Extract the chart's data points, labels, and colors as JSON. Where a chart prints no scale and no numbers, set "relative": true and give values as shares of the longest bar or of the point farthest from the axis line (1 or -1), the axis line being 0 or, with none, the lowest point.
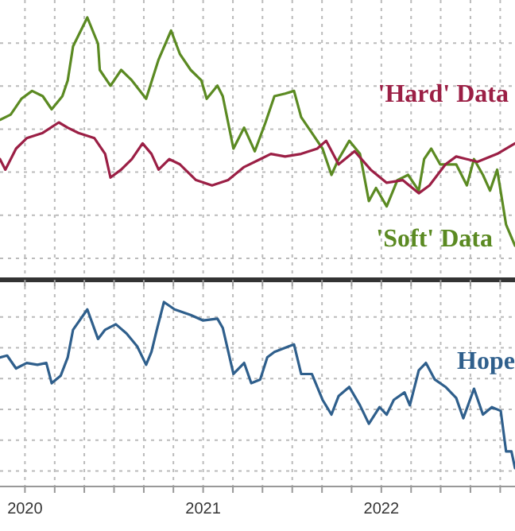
{
  "chart_data": [
    {
      "type": "line",
      "relative": true,
      "grid": true,
      "tick_labels": false,
      "xlim": [
        2020.36,
        2023.25
      ],
      "xticks": [
        {
          "value": 2020.5,
          "label": null
        },
        {
          "value": 2020.667,
          "label": null
        },
        {
          "value": 2020.833,
          "label": null
        },
        {
          "value": 2021,
          "label": null
        },
        {
          "value": 2021.167,
          "label": null
        },
        {
          "value": 2021.333,
          "label": null
        },
        {
          "value": 2021.5,
          "label": null
        },
        {
          "value": 2021.667,
          "label": null
        },
        {
          "value": 2021.833,
          "label": null
        },
        {
          "value": 2022,
          "label": null
        },
        {
          "value": 2022.167,
          "label": null
        },
        {
          "value": 2022.333,
          "label": null
        },
        {
          "value": 2022.5,
          "label": null
        },
        {
          "value": 2022.667,
          "label": null
        },
        {
          "value": 2022.833,
          "label": null
        },
        {
          "value": 2023,
          "label": null
        },
        {
          "value": 2023.167,
          "label": null
        }
      ],
      "series": [
        {
          "name": "'Soft' Data",
          "color": "#5b8a22",
          "x": [
            2020.36,
            2020.42,
            2020.48,
            2020.54,
            2020.6,
            2020.65,
            2020.71,
            2020.74,
            2020.77,
            2020.85,
            2020.91,
            2020.92,
            2020.98,
            2021.04,
            2021.1,
            2021.18,
            2021.25,
            2021.32,
            2021.37,
            2021.43,
            2021.49,
            2021.52,
            2021.58,
            2021.61,
            2021.67,
            2021.73,
            2021.79,
            2021.85,
            2021.9,
            2021.96,
            2022.01,
            2022.05,
            2022.11,
            2022.17,
            2022.22,
            2022.26,
            2022.32,
            2022.38,
            2022.43,
            2022.47,
            2022.53,
            2022.59,
            2022.65,
            2022.71,
            2022.74,
            2022.78,
            2022.83,
            2022.92,
            2022.98,
            2023.02,
            2023.07,
            2023.11,
            2023.15,
            2023.2,
            2023.25
          ],
          "values": [
            0.61,
            0.63,
            0.69,
            0.72,
            0.7,
            0.65,
            0.7,
            0.76,
            0.89,
            1,
            0.9,
            0.8,
            0.74,
            0.8,
            0.76,
            0.69,
            0.84,
            0.95,
            0.86,
            0.8,
            0.76,
            0.69,
            0.74,
            0.7,
            0.5,
            0.58,
            0.49,
            0.6,
            0.7,
            0.71,
            0.72,
            0.62,
            0.56,
            0.5,
            0.4,
            0.46,
            0.53,
            0.48,
            0.3,
            0.35,
            0.28,
            0.38,
            0.4,
            0.34,
            0.46,
            0.5,
            0.44,
            0.44,
            0.36,
            0.46,
            0.4,
            0.34,
            0.42,
            0.21,
            0.13
          ]
        },
        {
          "name": "'Hard' Data",
          "color": "#9b1f45",
          "x": [
            2020.36,
            2020.39,
            2020.45,
            2020.51,
            2020.6,
            2020.69,
            2020.74,
            2020.8,
            2020.89,
            2020.95,
            2020.98,
            2021.04,
            2021.1,
            2021.16,
            2021.21,
            2021.25,
            2021.31,
            2021.37,
            2021.46,
            2021.55,
            2021.64,
            2021.73,
            2021.82,
            2021.88,
            2021.96,
            2022.05,
            2022.14,
            2022.19,
            2022.26,
            2022.35,
            2022.44,
            2022.53,
            2022.62,
            2022.71,
            2022.77,
            2022.86,
            2022.92,
            2022.98,
            2023.04,
            2023.15,
            2023.25
          ],
          "values": [
            0.46,
            0.42,
            0.5,
            0.54,
            0.56,
            0.6,
            0.58,
            0.56,
            0.54,
            0.48,
            0.39,
            0.42,
            0.46,
            0.52,
            0.48,
            0.42,
            0.46,
            0.44,
            0.38,
            0.36,
            0.38,
            0.43,
            0.46,
            0.48,
            0.47,
            0.48,
            0.5,
            0.53,
            0.44,
            0.49,
            0.42,
            0.37,
            0.38,
            0.33,
            0.36,
            0.44,
            0.47,
            0.46,
            0.45,
            0.48,
            0.52
          ]
        }
      ]
    },
    {
      "type": "line",
      "relative": true,
      "grid": true,
      "tick_labels": "x",
      "xlim": [
        2020.36,
        2023.25
      ],
      "xticks": [
        {
          "value": 2020.5,
          "label": "2020"
        },
        {
          "value": 2020.667,
          "label": null
        },
        {
          "value": 2020.833,
          "label": null
        },
        {
          "value": 2021,
          "label": null
        },
        {
          "value": 2021.167,
          "label": null
        },
        {
          "value": 2021.333,
          "label": null
        },
        {
          "value": 2021.5,
          "label": "2021"
        },
        {
          "value": 2021.667,
          "label": null
        },
        {
          "value": 2021.833,
          "label": null
        },
        {
          "value": 2022,
          "label": null
        },
        {
          "value": 2022.167,
          "label": null
        },
        {
          "value": 2022.333,
          "label": null
        },
        {
          "value": 2022.5,
          "label": "2022"
        },
        {
          "value": 2022.667,
          "label": null
        },
        {
          "value": 2022.833,
          "label": null
        },
        {
          "value": 2023,
          "label": null
        },
        {
          "value": 2023.167,
          "label": null
        }
      ],
      "series": [
        {
          "name": "Hope",
          "color": "#2f5f8c",
          "x": [
            2020.36,
            2020.4,
            2020.45,
            2020.51,
            2020.57,
            2020.62,
            2020.65,
            2020.7,
            2020.74,
            2020.77,
            2020.85,
            2020.91,
            2020.95,
            2021.01,
            2021.07,
            2021.13,
            2021.18,
            2021.21,
            2021.24,
            2021.28,
            2021.34,
            2021.43,
            2021.5,
            2021.58,
            2021.61,
            2021.67,
            2021.73,
            2021.77,
            2021.82,
            2021.86,
            2021.9,
            2021.98,
            2022.01,
            2022.05,
            2022.11,
            2022.17,
            2022.22,
            2022.26,
            2022.32,
            2022.38,
            2022.43,
            2022.49,
            2022.53,
            2022.57,
            2022.63,
            2022.66,
            2022.71,
            2022.75,
            2022.8,
            2022.86,
            2022.92,
            2022.96,
            2023.02,
            2023.07,
            2023.12,
            2023.17,
            2023.2,
            2023.23,
            2023.25
          ],
          "values": [
            0.7,
            0.71,
            0.64,
            0.67,
            0.66,
            0.67,
            0.56,
            0.6,
            0.7,
            0.85,
            0.96,
            0.8,
            0.85,
            0.88,
            0.83,
            0.76,
            0.66,
            0.73,
            0.85,
            1,
            0.96,
            0.93,
            0.9,
            0.91,
            0.86,
            0.61,
            0.67,
            0.56,
            0.58,
            0.7,
            0.73,
            0.76,
            0.77,
            0.61,
            0.61,
            0.47,
            0.39,
            0.49,
            0.54,
            0.44,
            0.34,
            0.43,
            0.39,
            0.47,
            0.51,
            0.44,
            0.63,
            0.67,
            0.58,
            0.54,
            0.48,
            0.37,
            0.53,
            0.39,
            0.43,
            0.41,
            0.19,
            0.19,
            0.1
          ]
        }
      ]
    }
  ]
}
